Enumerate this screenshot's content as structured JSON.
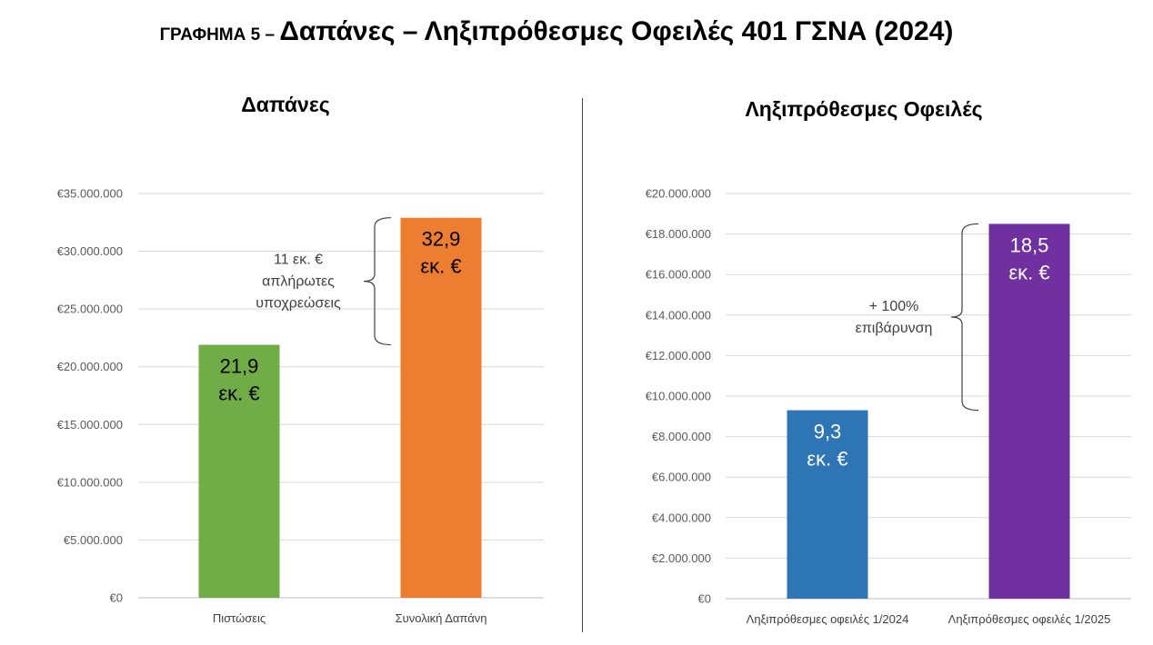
{
  "page": {
    "title_prefix": "ΓΡΑΦΗΜΑ 5 – ",
    "title_main": "Δαπάνες – Ληξιπρόθεσμες Οφειλές 401 ΓΣΝΑ (2024)"
  },
  "chart_data": [
    {
      "type": "bar",
      "title": "Δαπάνες",
      "categories": [
        "Πιστώσεις",
        "Συνολική Δαπάνη"
      ],
      "values": [
        21900000,
        32900000
      ],
      "colors": [
        "#70AD47",
        "#ED7D31"
      ],
      "data_labels": [
        [
          "21,9",
          "εκ. €"
        ],
        [
          "32,9",
          "εκ. €"
        ]
      ],
      "data_label_colors": [
        "#000000",
        "#000000"
      ],
      "ylim": [
        0,
        35000000
      ],
      "yticks": [
        0,
        5000000,
        10000000,
        15000000,
        20000000,
        25000000,
        30000000,
        35000000
      ],
      "ytick_labels": [
        "€0",
        "€5.000.000",
        "€10.000.000",
        "€15.000.000",
        "€20.000.000",
        "€25.000.000",
        "€30.000.000",
        "€35.000.000"
      ],
      "grid": true,
      "annotation": {
        "lines": [
          "11 εκ. €",
          "απλήρωτες",
          "υποχρεώσεις"
        ],
        "from": 21900000,
        "to": 32900000
      }
    },
    {
      "type": "bar",
      "title": "Ληξιπρόθεσμες Οφειλές",
      "categories": [
        "Ληξιπρόθεσμες οφειλές 1/2024",
        "Ληξιπρόθεσμες οφειλές 1/2025"
      ],
      "values": [
        9300000,
        18500000
      ],
      "colors": [
        "#2E75B6",
        "#7030A0"
      ],
      "data_labels": [
        [
          "9,3",
          "εκ. €"
        ],
        [
          "18,5",
          "εκ. €"
        ]
      ],
      "data_label_colors": [
        "#FFFFFF",
        "#FFFFFF"
      ],
      "ylim": [
        0,
        20000000
      ],
      "yticks": [
        0,
        2000000,
        4000000,
        6000000,
        8000000,
        10000000,
        12000000,
        14000000,
        16000000,
        18000000,
        20000000
      ],
      "ytick_labels": [
        "€0",
        "€2.000.000",
        "€4.000.000",
        "€6.000.000",
        "€8.000.000",
        "€10.000.000",
        "€12.000.000",
        "€14.000.000",
        "€16.000.000",
        "€18.000.000",
        "€20.000.000"
      ],
      "grid": true,
      "annotation": {
        "lines": [
          "+ 100%",
          "επιβάρυνση"
        ],
        "from": 9300000,
        "to": 18500000
      }
    }
  ]
}
